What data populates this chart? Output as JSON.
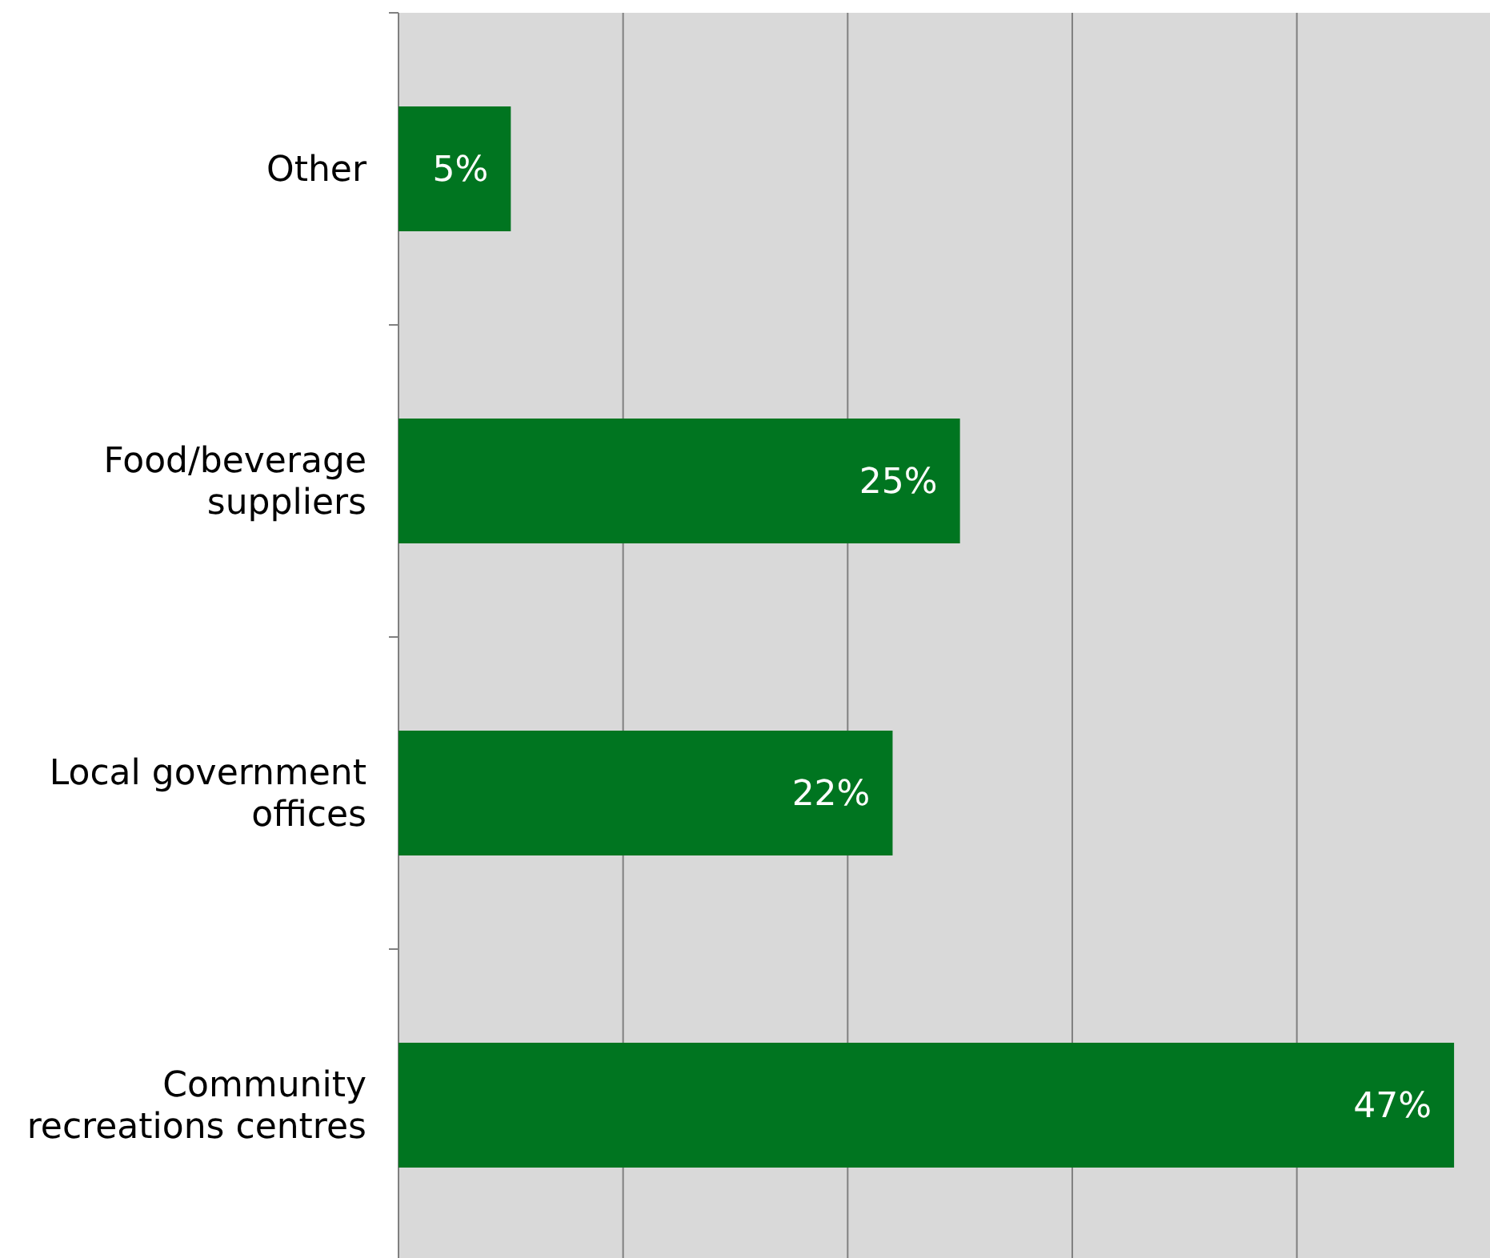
{
  "chart_data": {
    "type": "bar",
    "orientation": "horizontal",
    "categories": [
      "Other",
      "Food/beverage suppliers",
      "Local government offices",
      "Community recreations centres"
    ],
    "values": [
      5,
      25,
      22,
      47
    ],
    "value_labels": [
      "5%",
      "25%",
      "22%",
      "47%"
    ],
    "color": "#007520",
    "xlim": [
      0,
      48.6
    ],
    "xticks": [
      {
        "value": 0,
        "label": null
      },
      {
        "value": 10,
        "label": null
      },
      {
        "value": 20,
        "label": null
      },
      {
        "value": 30,
        "label": null
      },
      {
        "value": 40,
        "label": null
      }
    ],
    "tick_labels": "y",
    "grid": "x"
  }
}
